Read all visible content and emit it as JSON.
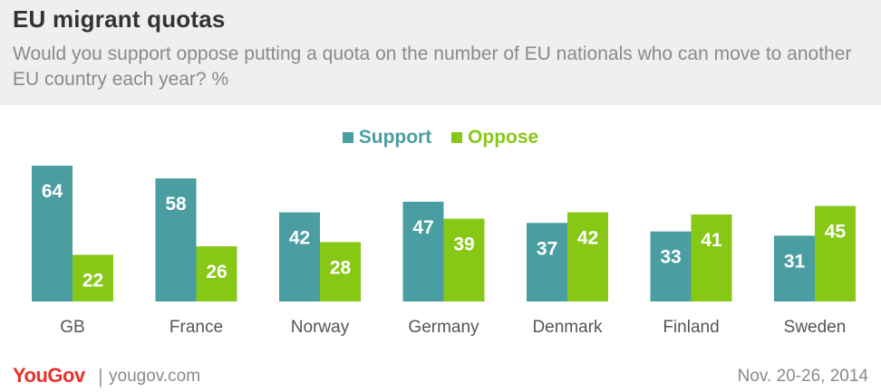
{
  "header": {
    "title": "EU migrant quotas",
    "subtitle": "Would you support oppose putting a quota on the number of EU nationals who can move to another EU country each year? %"
  },
  "legend": [
    {
      "label": "Support",
      "color": "#4a9ea1"
    },
    {
      "label": "Oppose",
      "color": "#87c817"
    }
  ],
  "chart_data": {
    "type": "bar",
    "categories": [
      "GB",
      "France",
      "Norway",
      "Germany",
      "Denmark",
      "Finland",
      "Sweden"
    ],
    "series": [
      {
        "name": "Support",
        "color": "#4a9ea1",
        "values": [
          64,
          58,
          42,
          47,
          37,
          33,
          31
        ]
      },
      {
        "name": "Oppose",
        "color": "#87c817",
        "values": [
          22,
          26,
          28,
          39,
          42,
          41,
          45
        ]
      }
    ],
    "ylim": [
      0,
      64
    ],
    "legend_position": "top-center",
    "grid": false,
    "data_labels": true
  },
  "footer": {
    "logo": "YouGov",
    "separator": "|",
    "url": "yougov.com",
    "date": "Nov. 20-26, 2014"
  }
}
